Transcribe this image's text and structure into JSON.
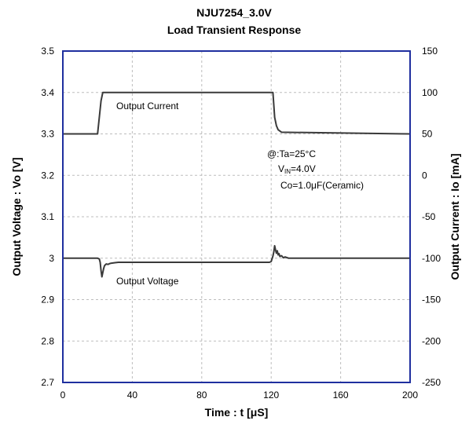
{
  "chart_data": {
    "type": "line",
    "title": "NJU7254_3.0V",
    "subtitle": "Load Transient Response",
    "xlabel": "Time : t [μS]",
    "ylabel_left": "Output Voltage : Vo [V]",
    "ylabel_right": "Output Current : Io [mA]",
    "xlim": [
      0,
      200
    ],
    "ylim_left": [
      2.7,
      3.5
    ],
    "ylim_right": [
      -250,
      150
    ],
    "x_ticks": [
      "0",
      "40",
      "80",
      "120",
      "160",
      "200"
    ],
    "x_tick_values": [
      0,
      40,
      80,
      120,
      160,
      200
    ],
    "y_left_ticks": [
      "2.7",
      "2.8",
      "2.9",
      "3",
      "3.1",
      "3.2",
      "3.3",
      "3.4",
      "3.5"
    ],
    "y_left_tick_values": [
      2.7,
      2.8,
      2.9,
      3.0,
      3.1,
      3.2,
      3.3,
      3.4,
      3.5
    ],
    "y_right_ticks": [
      "-250",
      "-200",
      "-150",
      "-100",
      "-50",
      "0",
      "50",
      "100",
      "150"
    ],
    "y_right_tick_values": [
      -250,
      -200,
      -150,
      -100,
      -50,
      0,
      50,
      100,
      150
    ],
    "grid": true,
    "series": [
      {
        "name": "Output Current",
        "axis": "right",
        "x": [
          0,
          20,
          20.5,
          22,
          23,
          121,
          121.5,
          122,
          123,
          124,
          126,
          200
        ],
        "y": [
          50,
          50,
          60,
          90,
          100,
          100,
          85,
          70,
          60,
          55,
          52,
          50
        ]
      },
      {
        "name": "Output Voltage",
        "axis": "left",
        "x": [
          0,
          20,
          21,
          21.5,
          22,
          22.5,
          23,
          23.5,
          24,
          25,
          26,
          27,
          28,
          30,
          32,
          100,
          119,
          120,
          121,
          121.5,
          122,
          122.5,
          123,
          123.5,
          124,
          124.5,
          125,
          126,
          127,
          128,
          130,
          200
        ],
        "y": [
          3.0,
          3.0,
          2.998,
          2.99,
          2.97,
          2.955,
          2.965,
          2.975,
          2.982,
          2.986,
          2.985,
          2.987,
          2.988,
          2.989,
          2.99,
          2.99,
          2.99,
          2.992,
          3.005,
          3.015,
          3.03,
          3.02,
          3.012,
          3.018,
          3.008,
          3.011,
          3.004,
          3.006,
          3.001,
          3.003,
          3.0,
          3.0
        ]
      }
    ],
    "annotations": [
      "Output Current",
      "Output Voltage"
    ],
    "conditions": {
      "temp": "@:Ta=25°C",
      "vin_prefix": "V",
      "vin_sub": "IN",
      "vin_value": "=4.0V",
      "co": "Co=1.0μF(Ceramic)"
    },
    "colors": {
      "frame": "#1f2f9f",
      "trace": "#3a3a3a",
      "grid": "#bdbdbd"
    }
  }
}
